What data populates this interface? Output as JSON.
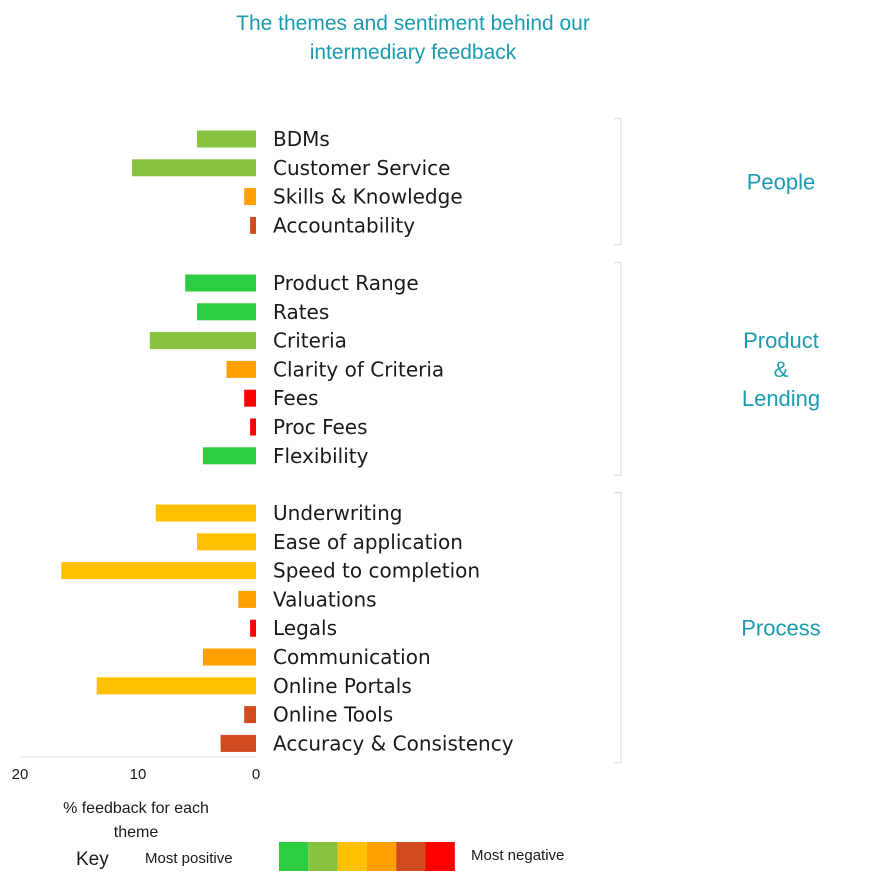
{
  "chart_data": {
    "type": "bar",
    "orientation": "horizontal",
    "title_lines": [
      "The themes and sentiment behind our",
      "intermediary feedback"
    ],
    "xlabel_lines": [
      "% feedback for each",
      "theme"
    ],
    "xlim": [
      0,
      20
    ],
    "x_reversed": true,
    "xticks": [
      "20",
      "10",
      "0"
    ],
    "grid": false,
    "groups": [
      {
        "label_lines": [
          "People"
        ],
        "items": [
          {
            "label": "BDMs",
            "value": 5,
            "sentiment": 2
          },
          {
            "label": "Customer Service",
            "value": 10.5,
            "sentiment": 2
          },
          {
            "label": "Skills & Knowledge",
            "value": 1,
            "sentiment": 4
          },
          {
            "label": "Accountability",
            "value": 0.5,
            "sentiment": 5
          }
        ]
      },
      {
        "label_lines": [
          "Product",
          "&",
          "Lending"
        ],
        "items": [
          {
            "label": "Product Range",
            "value": 6,
            "sentiment": 1
          },
          {
            "label": "Rates",
            "value": 5,
            "sentiment": 1
          },
          {
            "label": "Criteria",
            "value": 9,
            "sentiment": 2
          },
          {
            "label": "Clarity of Criteria",
            "value": 2.5,
            "sentiment": 4
          },
          {
            "label": "Fees",
            "value": 1,
            "sentiment": 6
          },
          {
            "label": "Proc Fees",
            "value": 0.5,
            "sentiment": 6
          },
          {
            "label": "Flexibility",
            "value": 4.5,
            "sentiment": 1
          }
        ]
      },
      {
        "label_lines": [
          "Process"
        ],
        "items": [
          {
            "label": "Underwriting",
            "value": 8.5,
            "sentiment": 3
          },
          {
            "label": "Ease of application",
            "value": 5,
            "sentiment": 3
          },
          {
            "label": "Speed to completion",
            "value": 16.5,
            "sentiment": 3
          },
          {
            "label": "Valuations",
            "value": 1.5,
            "sentiment": 4
          },
          {
            "label": "Legals",
            "value": 0.5,
            "sentiment": 6
          },
          {
            "label": "Communication",
            "value": 4.5,
            "sentiment": 4
          },
          {
            "label": "Online Portals",
            "value": 13.5,
            "sentiment": 3
          },
          {
            "label": "Online Tools",
            "value": 1,
            "sentiment": 5
          },
          {
            "label": "Accuracy & Consistency",
            "value": 3,
            "sentiment": 5
          }
        ]
      }
    ],
    "key": {
      "title": "Key",
      "low_label": "Most positive",
      "high_label": "Most negative",
      "colors": [
        "#2ecc40",
        "#86c440",
        "#ffc000",
        "#ffa000",
        "#d04a1f",
        "#ff0000"
      ]
    }
  }
}
